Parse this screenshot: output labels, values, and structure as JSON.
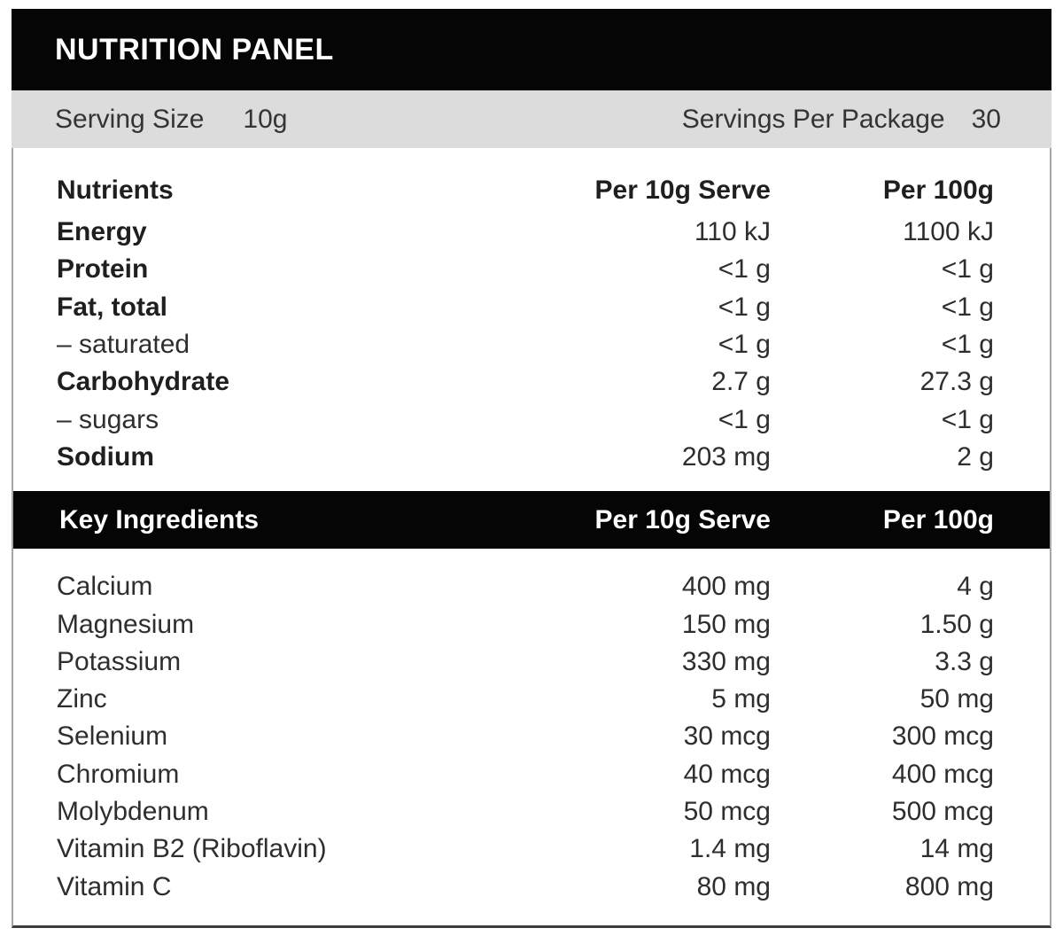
{
  "colors": {
    "bar_black": "#050505",
    "serving_bar_gray": "#dcdcdc",
    "text_dark": "#2e2e2e",
    "border_side": "#a6a6a6",
    "border_bottom": "#3d3d3d"
  },
  "panel": {
    "title": "NUTRITION PANEL",
    "serving_bar": {
      "serving_size_label": "Serving Size",
      "serving_size_value": "10g",
      "servings_per_package_label": "Servings Per Package",
      "servings_per_package_value": "30"
    },
    "nutrients": {
      "columns": {
        "name": "Nutrients",
        "per_serve": "Per 10g Serve",
        "per_100g": "Per 100g"
      },
      "rows": [
        {
          "name": "Energy",
          "bold": true,
          "per_serve": "110 kJ",
          "per_100g": "1100 kJ"
        },
        {
          "name": "Protein",
          "bold": true,
          "per_serve": "<1 g",
          "per_100g": "<1 g"
        },
        {
          "name": "Fat, total",
          "bold": true,
          "per_serve": "<1 g",
          "per_100g": "<1 g"
        },
        {
          "name": "– saturated",
          "bold": false,
          "per_serve": "<1 g",
          "per_100g": "<1 g"
        },
        {
          "name": "Carbohydrate",
          "bold": true,
          "per_serve": "2.7 g",
          "per_100g": "27.3 g"
        },
        {
          "name": "– sugars",
          "bold": false,
          "per_serve": "<1 g",
          "per_100g": "<1 g"
        },
        {
          "name": "Sodium",
          "bold": true,
          "per_serve": "203 mg",
          "per_100g": "2 g"
        }
      ]
    },
    "key_ingredients": {
      "columns": {
        "name": "Key Ingredients",
        "per_serve": "Per 10g Serve",
        "per_100g": "Per 100g"
      },
      "rows": [
        {
          "name": "Calcium",
          "per_serve": "400 mg",
          "per_100g": "4 g"
        },
        {
          "name": "Magnesium",
          "per_serve": "150 mg",
          "per_100g": "1.50 g"
        },
        {
          "name": "Potassium",
          "per_serve": "330 mg",
          "per_100g": "3.3 g"
        },
        {
          "name": "Zinc",
          "per_serve": "5 mg",
          "per_100g": "50 mg"
        },
        {
          "name": "Selenium",
          "per_serve": "30 mcg",
          "per_100g": "300 mcg"
        },
        {
          "name": "Chromium",
          "per_serve": "40 mcg",
          "per_100g": "400 mcg"
        },
        {
          "name": "Molybdenum",
          "per_serve": "50 mcg",
          "per_100g": "500 mcg"
        },
        {
          "name": "Vitamin B2 (Riboflavin)",
          "per_serve": "1.4 mg",
          "per_100g": "14 mg"
        },
        {
          "name": "Vitamin C",
          "per_serve": "80 mg",
          "per_100g": "800 mg"
        }
      ]
    }
  }
}
